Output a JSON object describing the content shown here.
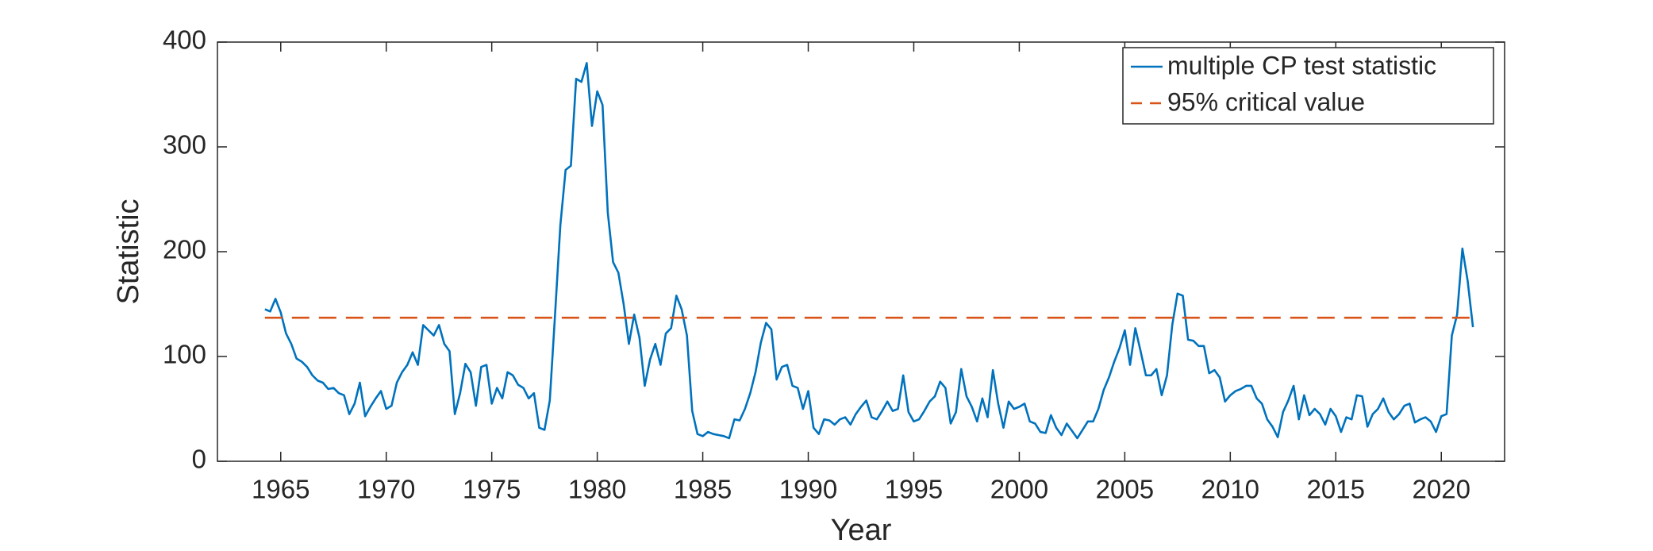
{
  "chart_data": {
    "type": "line",
    "xlabel": "Year",
    "ylabel": "Statistic",
    "xlim": [
      1962,
      2023
    ],
    "ylim": [
      0,
      400
    ],
    "xticks": [
      1965,
      1970,
      1975,
      1980,
      1985,
      1990,
      1995,
      2000,
      2005,
      2010,
      2015,
      2020
    ],
    "yticks": [
      0,
      100,
      200,
      300,
      400
    ],
    "legend": "top-right",
    "box": true,
    "series": [
      {
        "name": "multiple CP test statistic",
        "color": "#0072bd",
        "linestyle": "solid",
        "x": [
          1964.25,
          1964.5,
          1964.75,
          1965,
          1965.25,
          1965.5,
          1965.75,
          1966,
          1966.25,
          1966.5,
          1966.75,
          1967,
          1967.25,
          1967.5,
          1967.75,
          1968,
          1968.25,
          1968.5,
          1968.75,
          1969,
          1969.25,
          1969.5,
          1969.75,
          1970,
          1970.25,
          1970.5,
          1970.75,
          1971,
          1971.25,
          1971.5,
          1971.75,
          1972,
          1972.25,
          1972.5,
          1972.75,
          1973,
          1973.25,
          1973.5,
          1973.75,
          1974,
          1974.25,
          1974.5,
          1974.75,
          1975,
          1975.25,
          1975.5,
          1975.75,
          1976,
          1976.25,
          1976.5,
          1976.75,
          1977,
          1977.25,
          1977.5,
          1977.75,
          1978,
          1978.25,
          1978.5,
          1978.75,
          1979,
          1979.25,
          1979.5,
          1979.75,
          1980,
          1980.25,
          1980.5,
          1980.75,
          1981,
          1981.25,
          1981.5,
          1981.75,
          1982,
          1982.25,
          1982.5,
          1982.75,
          1983,
          1983.25,
          1983.5,
          1983.75,
          1984,
          1984.25,
          1984.5,
          1984.75,
          1985,
          1985.25,
          1985.5,
          1985.75,
          1986,
          1986.25,
          1986.5,
          1986.75,
          1987,
          1987.25,
          1987.5,
          1987.75,
          1988,
          1988.25,
          1988.5,
          1988.75,
          1989,
          1989.25,
          1989.5,
          1989.75,
          1990,
          1990.25,
          1990.5,
          1990.75,
          1991,
          1991.25,
          1991.5,
          1991.75,
          1992,
          1992.25,
          1992.5,
          1992.75,
          1993,
          1993.25,
          1993.5,
          1993.75,
          1994,
          1994.25,
          1994.5,
          1994.75,
          1995,
          1995.25,
          1995.5,
          1995.75,
          1996,
          1996.25,
          1996.5,
          1996.75,
          1997,
          1997.25,
          1997.5,
          1997.75,
          1998,
          1998.25,
          1998.5,
          1998.75,
          1999,
          1999.25,
          1999.5,
          1999.75,
          2000,
          2000.25,
          2000.5,
          2000.75,
          2001,
          2001.25,
          2001.5,
          2001.75,
          2002,
          2002.25,
          2002.5,
          2002.75,
          2003,
          2003.25,
          2003.5,
          2003.75,
          2004,
          2004.25,
          2004.5,
          2004.75,
          2005,
          2005.25,
          2005.5,
          2005.75,
          2006,
          2006.25,
          2006.5,
          2006.75,
          2007,
          2007.25,
          2007.5,
          2007.75,
          2008,
          2008.25,
          2008.5,
          2008.75,
          2009,
          2009.25,
          2009.5,
          2009.75,
          2010,
          2010.25,
          2010.5,
          2010.75,
          2011,
          2011.25,
          2011.5,
          2011.75,
          2012,
          2012.25,
          2012.5,
          2012.75,
          2013,
          2013.25,
          2013.5,
          2013.75,
          2014,
          2014.25,
          2014.5,
          2014.75,
          2015,
          2015.25,
          2015.5,
          2015.75,
          2016,
          2016.25,
          2016.5,
          2016.75,
          2017,
          2017.25,
          2017.5,
          2017.75,
          2018,
          2018.25,
          2018.5,
          2018.75,
          2019,
          2019.25,
          2019.5,
          2019.75,
          2020,
          2020.25,
          2020.5,
          2020.75,
          2021,
          2021.25,
          2021.5
        ],
        "values": [
          145,
          143,
          155,
          142,
          122,
          112,
          98,
          95,
          90,
          82,
          77,
          75,
          69,
          70,
          65,
          63,
          45,
          55,
          75,
          43,
          52,
          60,
          67,
          50,
          53,
          75,
          85,
          92,
          104,
          92,
          130,
          125,
          120,
          130,
          112,
          105,
          45,
          65,
          93,
          85,
          53,
          90,
          92,
          55,
          70,
          60,
          85,
          82,
          73,
          70,
          60,
          65,
          32,
          30,
          58,
          140,
          225,
          278,
          282,
          365,
          362,
          380,
          320,
          353,
          340,
          237,
          190,
          180,
          150,
          112,
          140,
          118,
          72,
          97,
          112,
          92,
          122,
          127,
          158,
          145,
          120,
          48,
          26,
          24,
          28,
          26,
          25,
          24,
          22,
          40,
          39,
          50,
          65,
          85,
          113,
          132,
          126,
          78,
          90,
          92,
          72,
          70,
          50,
          67,
          32,
          26,
          40,
          39,
          35,
          40,
          42,
          35,
          45,
          52,
          58,
          42,
          40,
          48,
          57,
          48,
          50,
          82,
          47,
          38,
          40,
          48,
          57,
          62,
          76,
          70,
          36,
          47,
          88,
          62,
          52,
          38,
          60,
          42,
          87,
          55,
          32,
          57,
          50,
          52,
          55,
          38,
          36,
          28,
          27,
          44,
          32,
          25,
          36,
          29,
          22,
          30,
          38,
          38,
          50,
          68,
          80,
          95,
          108,
          125,
          92,
          127,
          105,
          82,
          82,
          88,
          63,
          82,
          130,
          160,
          158,
          116,
          115,
          110,
          110,
          84,
          87,
          80,
          57,
          63,
          67,
          69,
          72,
          72,
          60,
          55,
          40,
          33,
          23,
          47,
          58,
          72,
          40,
          63,
          44,
          50,
          45,
          35,
          50,
          43,
          28,
          42,
          40,
          63,
          62,
          33,
          45,
          50,
          60,
          47,
          40,
          45,
          53,
          55,
          37,
          40,
          42,
          38,
          28,
          43,
          45,
          120,
          140,
          203,
          172,
          128
        ]
      },
      {
        "name": "95% critical value",
        "color": "#d95319",
        "linestyle": "dashed",
        "x": [
          1964.25,
          2021.5
        ],
        "values": [
          137,
          137
        ]
      }
    ]
  }
}
